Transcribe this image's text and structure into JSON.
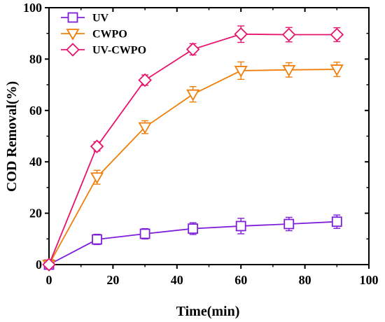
{
  "chart_data": {
    "type": "line",
    "title": "",
    "xlabel": "Time(min)",
    "ylabel": "COD Removal(%)",
    "xlim": [
      0,
      100
    ],
    "ylim": [
      0,
      100
    ],
    "xticks": [
      0,
      20,
      40,
      60,
      80,
      100
    ],
    "yticks": [
      0,
      20,
      40,
      60,
      80,
      100
    ],
    "grid": false,
    "legend_position": "top-left",
    "x": [
      0,
      15,
      30,
      45,
      60,
      75,
      90
    ],
    "series": [
      {
        "name": "UV",
        "color": "#7f1fd9",
        "marker": "square",
        "values": [
          0,
          9.8,
          12.0,
          14.0,
          15.0,
          15.8,
          16.7
        ],
        "errors": [
          0.5,
          2.0,
          2.0,
          2.3,
          3.0,
          2.6,
          2.6
        ]
      },
      {
        "name": "CWPO",
        "color": "#f07f0a",
        "marker": "triangle-down",
        "values": [
          0,
          34.0,
          53.5,
          66.3,
          75.5,
          75.8,
          76.0
        ],
        "errors": [
          0.5,
          2.7,
          2.5,
          3.0,
          3.4,
          2.8,
          2.8
        ]
      },
      {
        "name": "UV-CWPO",
        "color": "#e8146c",
        "marker": "diamond",
        "values": [
          0,
          46.0,
          71.8,
          83.8,
          89.7,
          89.5,
          89.5
        ],
        "errors": [
          0.5,
          1.8,
          2.0,
          2.2,
          3.2,
          2.8,
          2.7
        ]
      }
    ]
  }
}
